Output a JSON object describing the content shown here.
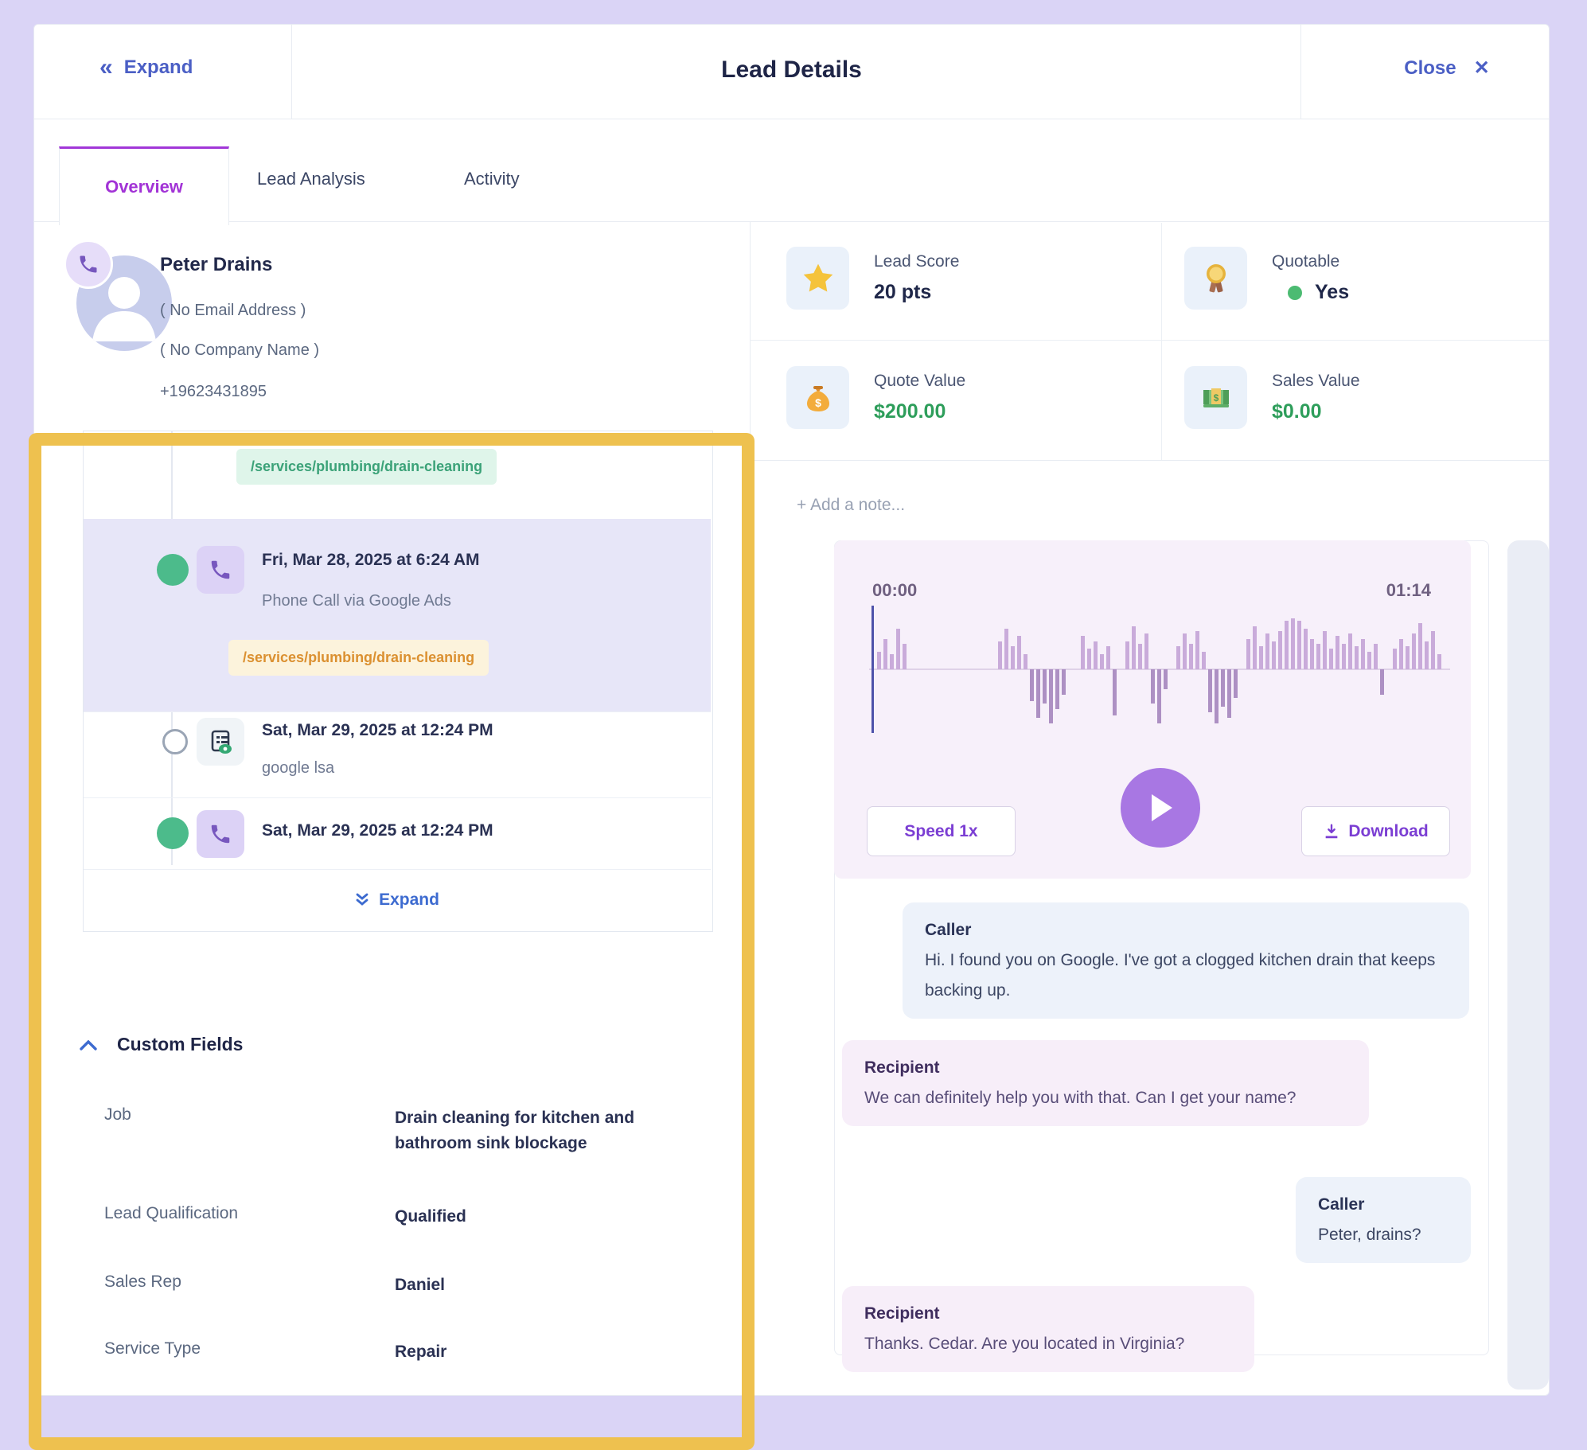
{
  "colors": {
    "frame": "#DAD4F6",
    "accent_indigo": "#4B5FC5",
    "tab_purple": "#A233D6",
    "highlight_row": "#E7E6F8",
    "green": "#4CBB8B",
    "money_green": "#2E9E5B",
    "chip_green_text": "#3BA278",
    "chip_yellow_text": "#DB9030",
    "player_bg": "#F7F0FA",
    "play_button": "#A877E3",
    "annotation_yellow": "#EEC14F"
  },
  "header": {
    "expand_label": "Expand",
    "title": "Lead Details",
    "close_label": "Close",
    "close_icon": "✕"
  },
  "tabs": [
    {
      "label": "Overview",
      "active": true
    },
    {
      "label": "Lead Analysis",
      "active": false
    },
    {
      "label": "Activity",
      "active": false
    }
  ],
  "contact": {
    "name": "Peter Drains",
    "email": "( No Email Address )",
    "company": "( No Company Name )",
    "phone": "+19623431895"
  },
  "timeline": {
    "items": [
      {
        "chip": "/services/plumbing/drain-cleaning",
        "chip_style": "green"
      },
      {
        "date": "Fri, Mar 28, 2025 at 6:24 AM",
        "desc": "Phone Call via Google Ads",
        "chip": "/services/plumbing/drain-cleaning",
        "chip_style": "yellow",
        "icon": "phone",
        "dot": "filled",
        "highlighted": true
      },
      {
        "date": "Sat, Mar 29, 2025 at 12:24 PM",
        "desc": "google lsa",
        "icon": "lead-form",
        "dot": "hollow",
        "highlighted": false
      },
      {
        "date": "Sat, Mar 29, 2025 at 12:24 PM",
        "icon": "phone",
        "dot": "filled",
        "highlighted": false
      }
    ],
    "expand_label": "Expand"
  },
  "custom_fields": {
    "title": "Custom Fields",
    "rows": [
      {
        "label": "Job",
        "value": "Drain cleaning for kitchen and bathroom sink blockage"
      },
      {
        "label": "Lead Qualification",
        "value": "Qualified"
      },
      {
        "label": "Sales Rep",
        "value": "Daniel"
      },
      {
        "label": "Service Type",
        "value": "Repair"
      }
    ]
  },
  "stats": [
    {
      "label": "Lead Score",
      "value": "20 pts",
      "icon": "star"
    },
    {
      "label": "Quotable",
      "value": "Yes",
      "icon": "medal",
      "status_dot": true
    },
    {
      "label": "Quote Value",
      "value": "$200.00",
      "icon": "money-bag",
      "green": true
    },
    {
      "label": "Sales Value",
      "value": "$0.00",
      "icon": "banknotes",
      "green": true
    }
  ],
  "notes": {
    "add_placeholder": "+ Add a note..."
  },
  "player": {
    "time_start": "00:00",
    "time_end": "01:14",
    "speed_label": "Speed 1x",
    "download_label": "Download",
    "waveform": [
      [
        0,
        0
      ],
      [
        0.35,
        0
      ],
      [
        0.6,
        0
      ],
      [
        0.3,
        0
      ],
      [
        0.8,
        0
      ],
      [
        0.5,
        0
      ],
      [
        0,
        0
      ],
      [
        0,
        0
      ],
      [
        0,
        0
      ],
      [
        0,
        0
      ],
      [
        0,
        0
      ],
      [
        0,
        0
      ],
      [
        0,
        0
      ],
      [
        0,
        0
      ],
      [
        0,
        0
      ],
      [
        0,
        0
      ],
      [
        0,
        0
      ],
      [
        0,
        0
      ],
      [
        0,
        0
      ],
      [
        0,
        0
      ],
      [
        0.55,
        0
      ],
      [
        0.8,
        0
      ],
      [
        0.45,
        0
      ],
      [
        0.65,
        0
      ],
      [
        0.3,
        0
      ],
      [
        0,
        0.55
      ],
      [
        0,
        0.85
      ],
      [
        0,
        0.6
      ],
      [
        0,
        0.95
      ],
      [
        0,
        0.7
      ],
      [
        0,
        0.45
      ],
      [
        0,
        0
      ],
      [
        0,
        0
      ],
      [
        0.65,
        0
      ],
      [
        0.4,
        0
      ],
      [
        0.55,
        0
      ],
      [
        0.3,
        0
      ],
      [
        0.45,
        0
      ],
      [
        0,
        0.8
      ],
      [
        0,
        0
      ],
      [
        0.55,
        0
      ],
      [
        0.85,
        0
      ],
      [
        0.5,
        0
      ],
      [
        0.7,
        0
      ],
      [
        0,
        0.6
      ],
      [
        0,
        0.95
      ],
      [
        0,
        0.35
      ],
      [
        0,
        0
      ],
      [
        0.45,
        0
      ],
      [
        0.7,
        0
      ],
      [
        0.5,
        0
      ],
      [
        0.75,
        0
      ],
      [
        0.35,
        0
      ],
      [
        0,
        0.75
      ],
      [
        0,
        0.95
      ],
      [
        0,
        0.65
      ],
      [
        0,
        0.85
      ],
      [
        0,
        0.5
      ],
      [
        0,
        0
      ],
      [
        0.6,
        0
      ],
      [
        0.85,
        0
      ],
      [
        0.45,
        0
      ],
      [
        0.7,
        0
      ],
      [
        0.55,
        0
      ],
      [
        0.75,
        0
      ],
      [
        0.95,
        0
      ],
      [
        1,
        0
      ],
      [
        0.95,
        0
      ],
      [
        0.8,
        0
      ],
      [
        0.6,
        0
      ],
      [
        0.5,
        0
      ],
      [
        0.75,
        0
      ],
      [
        0.4,
        0
      ],
      [
        0.65,
        0
      ],
      [
        0.5,
        0
      ],
      [
        0.7,
        0
      ],
      [
        0.45,
        0
      ],
      [
        0.6,
        0
      ],
      [
        0.35,
        0
      ],
      [
        0.5,
        0
      ],
      [
        0,
        0.45
      ],
      [
        0,
        0
      ],
      [
        0.4,
        0
      ],
      [
        0.6,
        0
      ],
      [
        0.45,
        0
      ],
      [
        0.7,
        0
      ],
      [
        0.9,
        0
      ],
      [
        0.55,
        0
      ],
      [
        0.75,
        0
      ],
      [
        0.3,
        0
      ]
    ]
  },
  "transcript": [
    {
      "speaker": "Caller",
      "text": "Hi. I found you on Google. I've got a clogged kitchen drain that keeps backing up."
    },
    {
      "speaker": "Recipient",
      "text": "We can definitely help you with that. Can I get your name?"
    },
    {
      "speaker": "Caller",
      "text": "Peter, drains?"
    },
    {
      "speaker": "Recipient",
      "text": "Thanks. Cedar. Are you located in Virginia?"
    }
  ]
}
